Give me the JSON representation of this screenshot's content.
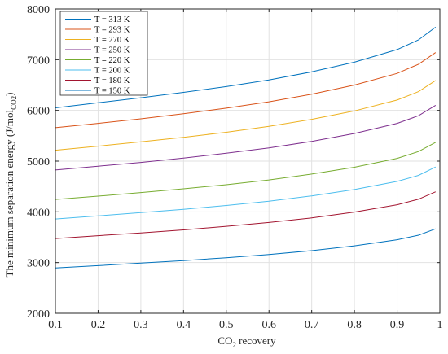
{
  "chart_data": {
    "type": "line",
    "xlabel": {
      "prefix": "CO",
      "sub": "2",
      "suffix": " recovery"
    },
    "ylabel": {
      "prefix": "The minimum separation energy (J/mol",
      "sub": "CO2",
      "suffix": ")"
    },
    "xlim": [
      0.1,
      1
    ],
    "ylim": [
      2000,
      8000
    ],
    "xticks": [
      0.1,
      0.2,
      0.3,
      0.4,
      0.5,
      0.6,
      0.7,
      0.8,
      0.9,
      1
    ],
    "xtick_labels": [
      "0.1",
      "0.2",
      "0.3",
      "0.4",
      "0.5",
      "0.6",
      "0.7",
      "0.8",
      "0.9",
      "1"
    ],
    "yticks": [
      2000,
      3000,
      4000,
      5000,
      6000,
      7000,
      8000
    ],
    "ytick_labels": [
      "2000",
      "3000",
      "4000",
      "5000",
      "6000",
      "7000",
      "8000"
    ],
    "grid": true,
    "legend_position": "top-left",
    "x": [
      0.1,
      0.2,
      0.3,
      0.4,
      0.5,
      0.6,
      0.7,
      0.8,
      0.9,
      0.95,
      0.99
    ],
    "series": [
      {
        "name": "T = 313 K",
        "color": "#0072bd",
        "values": [
          6050,
          6150,
          6250,
          6355,
          6470,
          6600,
          6760,
          6950,
          7200,
          7390,
          7640
        ]
      },
      {
        "name": "T = 293 K",
        "color": "#d95319",
        "values": [
          5660,
          5745,
          5835,
          5935,
          6045,
          6170,
          6320,
          6500,
          6730,
          6910,
          7140
        ]
      },
      {
        "name": "T = 270 K",
        "color": "#edb120",
        "values": [
          5215,
          5295,
          5380,
          5470,
          5570,
          5685,
          5825,
          5990,
          6205,
          6370,
          6590
        ]
      },
      {
        "name": "T = 250 K",
        "color": "#7e2f8e",
        "values": [
          4825,
          4900,
          4975,
          5060,
          5155,
          5260,
          5390,
          5545,
          5745,
          5895,
          6100
        ]
      },
      {
        "name": "T = 220 K",
        "color": "#77ac30",
        "values": [
          4245,
          4310,
          4380,
          4455,
          4535,
          4630,
          4745,
          4880,
          5055,
          5190,
          5370
        ]
      },
      {
        "name": "T = 200 K",
        "color": "#4dbeee",
        "values": [
          3860,
          3920,
          3985,
          4050,
          4125,
          4210,
          4315,
          4440,
          4600,
          4720,
          4885
        ]
      },
      {
        "name": "T = 180 K",
        "color": "#a2142f",
        "values": [
          3475,
          3530,
          3585,
          3645,
          3715,
          3790,
          3880,
          3995,
          4140,
          4250,
          4395
        ]
      },
      {
        "name": "T = 150 K",
        "color": "#0072bd",
        "values": [
          2895,
          2940,
          2990,
          3040,
          3095,
          3160,
          3235,
          3330,
          3450,
          3540,
          3665
        ]
      }
    ]
  }
}
